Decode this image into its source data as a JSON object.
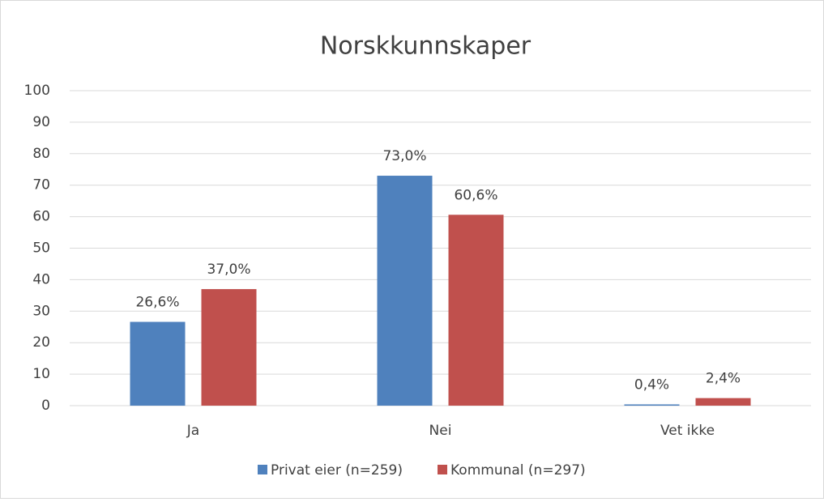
{
  "chart_data": {
    "type": "bar",
    "title": "Norskkunnskaper",
    "categories": [
      "Ja",
      "Nei",
      "Vet ikke"
    ],
    "series": [
      {
        "name": "Privat eier (n=259)",
        "color": "#4f81bd",
        "values": [
          26.6,
          73.0,
          0.4
        ],
        "value_labels": [
          "26,6%",
          "73,0%",
          "0,4%"
        ]
      },
      {
        "name": "Kommunal (n=297)",
        "color": "#c0504d",
        "values": [
          37.0,
          60.6,
          2.4
        ],
        "value_labels": [
          "37,0%",
          "60,6%",
          "2,4%"
        ]
      }
    ],
    "ylim": [
      0,
      100
    ],
    "yticks": [
      0,
      10,
      20,
      30,
      40,
      50,
      60,
      70,
      80,
      90,
      100
    ],
    "grid": true,
    "legend": "bottom"
  }
}
